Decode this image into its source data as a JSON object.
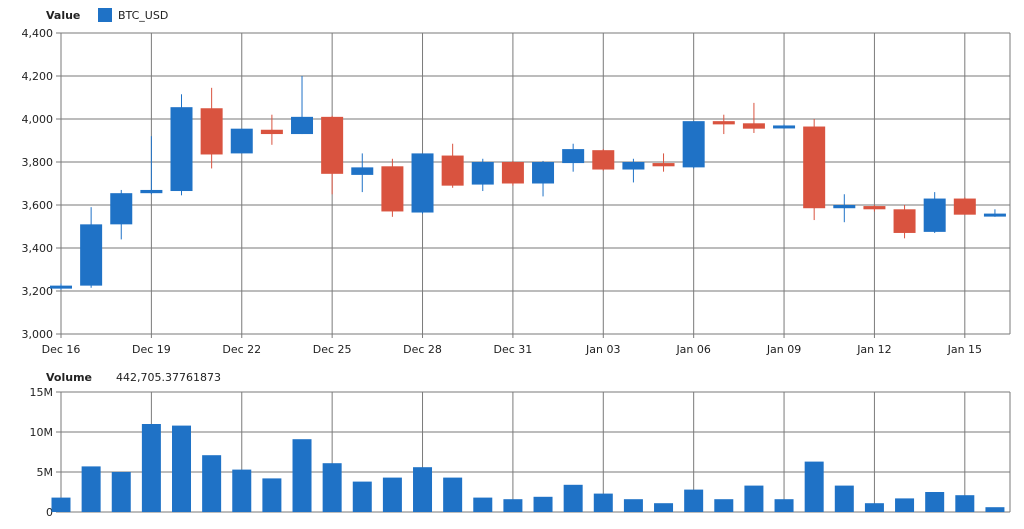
{
  "chart_data": [
    {
      "type": "candlestick",
      "panel": "price",
      "legend_title": "Value",
      "series_name": "BTC_USD",
      "colors": {
        "up": "#1f72c6",
        "down": "#d9533f",
        "grid": "#7a7a7a"
      },
      "ylim": [
        3000,
        4400
      ],
      "y_ticks": [
        3000,
        3200,
        3400,
        3600,
        3800,
        4000,
        4200,
        4400
      ],
      "y_tick_labels": [
        "3,000",
        "3,200",
        "3,400",
        "3,600",
        "3,800",
        "4,000",
        "4,200",
        "4,400"
      ],
      "x_tick_labels": [
        "Dec 16",
        "Dec 19",
        "Dec 22",
        "Dec 25",
        "Dec 28",
        "Dec 31",
        "Jan 03",
        "Jan 06",
        "Jan 09",
        "Jan 12",
        "Jan 15"
      ],
      "x_tick_index": [
        0,
        3,
        6,
        9,
        12,
        15,
        18,
        21,
        24,
        27,
        30
      ],
      "dates": [
        "Dec 16",
        "Dec 17",
        "Dec 18",
        "Dec 19",
        "Dec 20",
        "Dec 21",
        "Dec 22",
        "Dec 23",
        "Dec 24",
        "Dec 25",
        "Dec 26",
        "Dec 27",
        "Dec 28",
        "Dec 29",
        "Dec 30",
        "Dec 31",
        "Jan 01",
        "Jan 02",
        "Jan 03",
        "Jan 04",
        "Jan 05",
        "Jan 06",
        "Jan 07",
        "Jan 08",
        "Jan 09",
        "Jan 10",
        "Jan 11",
        "Jan 12",
        "Jan 13",
        "Jan 14",
        "Jan 15",
        "Jan 16"
      ],
      "candles": [
        {
          "open": 3215,
          "high": 3235,
          "low": 3205,
          "close": 3225
        },
        {
          "open": 3225,
          "high": 3590,
          "low": 3215,
          "close": 3510
        },
        {
          "open": 3510,
          "high": 3670,
          "low": 3440,
          "close": 3655
        },
        {
          "open": 3655,
          "high": 3920,
          "low": 3650,
          "close": 3670
        },
        {
          "open": 3665,
          "high": 4115,
          "low": 3645,
          "close": 4055
        },
        {
          "open": 4050,
          "high": 4145,
          "low": 3770,
          "close": 3835
        },
        {
          "open": 3840,
          "high": 3955,
          "low": 3840,
          "close": 3955
        },
        {
          "open": 3950,
          "high": 4020,
          "low": 3880,
          "close": 3930
        },
        {
          "open": 3930,
          "high": 4200,
          "low": 3930,
          "close": 4010
        },
        {
          "open": 4010,
          "high": 4015,
          "low": 3650,
          "close": 3745
        },
        {
          "open": 3740,
          "high": 3840,
          "low": 3660,
          "close": 3775
        },
        {
          "open": 3780,
          "high": 3815,
          "low": 3545,
          "close": 3570
        },
        {
          "open": 3565,
          "high": 3840,
          "low": 3560,
          "close": 3840
        },
        {
          "open": 3830,
          "high": 3885,
          "low": 3680,
          "close": 3690
        },
        {
          "open": 3695,
          "high": 3815,
          "low": 3665,
          "close": 3800
        },
        {
          "open": 3800,
          "high": 3805,
          "low": 3690,
          "close": 3700
        },
        {
          "open": 3700,
          "high": 3805,
          "low": 3640,
          "close": 3800
        },
        {
          "open": 3795,
          "high": 3885,
          "low": 3755,
          "close": 3860
        },
        {
          "open": 3855,
          "high": 3860,
          "low": 3760,
          "close": 3765
        },
        {
          "open": 3765,
          "high": 3815,
          "low": 3705,
          "close": 3800
        },
        {
          "open": 3795,
          "high": 3840,
          "low": 3755,
          "close": 3780
        },
        {
          "open": 3775,
          "high": 3990,
          "low": 3770,
          "close": 3990
        },
        {
          "open": 3990,
          "high": 4020,
          "low": 3930,
          "close": 3975
        },
        {
          "open": 3980,
          "high": 4075,
          "low": 3935,
          "close": 3955
        },
        {
          "open": 3960,
          "high": 3975,
          "low": 3955,
          "close": 3970
        },
        {
          "open": 3965,
          "high": 4000,
          "low": 3530,
          "close": 3585
        },
        {
          "open": 3585,
          "high": 3650,
          "low": 3520,
          "close": 3600
        },
        {
          "open": 3595,
          "high": 3600,
          "low": 3570,
          "close": 3580
        },
        {
          "open": 3580,
          "high": 3600,
          "low": 3445,
          "close": 3470
        },
        {
          "open": 3475,
          "high": 3660,
          "low": 3470,
          "close": 3630
        },
        {
          "open": 3630,
          "high": 3635,
          "low": 3555,
          "close": 3555
        },
        {
          "open": 3550,
          "high": 3580,
          "low": 3545,
          "close": 3560
        }
      ]
    },
    {
      "type": "bar",
      "panel": "volume",
      "legend_title": "Volume",
      "legend_value": "442,705.37761873",
      "color": "#1f72c6",
      "ylim": [
        0,
        15000000
      ],
      "y_ticks": [
        0,
        5000000,
        10000000,
        15000000
      ],
      "y_tick_labels": [
        "0",
        "5M",
        "10M",
        "15M"
      ],
      "values": [
        1800000,
        5700000,
        5000000,
        11000000,
        10800000,
        7100000,
        5300000,
        4200000,
        9100000,
        6100000,
        3800000,
        4300000,
        5600000,
        4300000,
        1800000,
        1600000,
        1900000,
        3400000,
        2300000,
        1600000,
        1100000,
        2800000,
        1600000,
        3300000,
        1600000,
        6300000,
        3300000,
        1100000,
        1700000,
        2500000,
        2100000,
        600000
      ]
    }
  ]
}
